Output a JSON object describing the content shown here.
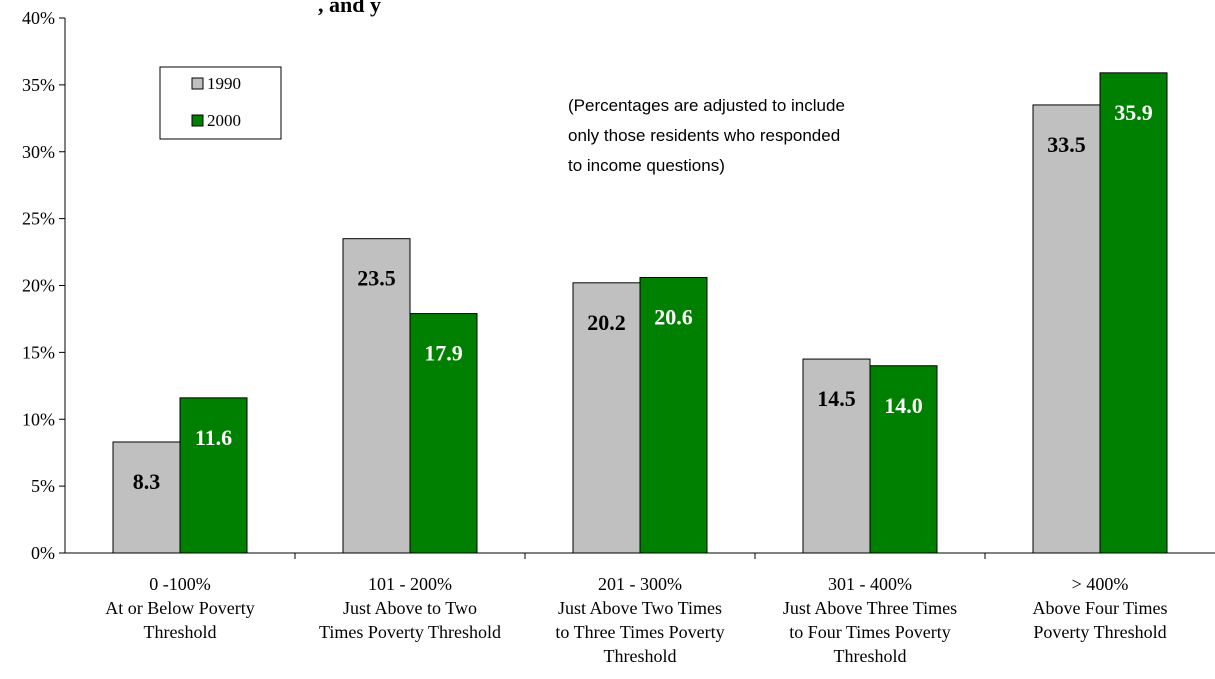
{
  "chart_data": {
    "type": "bar",
    "title": ", and y",
    "categories": [
      [
        "0 -100%",
        "At or Below Poverty",
        "Threshold"
      ],
      [
        "101 - 200%",
        "Just Above to Two",
        "Times Poverty Threshold"
      ],
      [
        "201 - 300%",
        "Just Above Two Times",
        "to Three Times Poverty",
        "Threshold"
      ],
      [
        "301 - 400%",
        "Just Above Three Times",
        "to Four Times Poverty",
        "Threshold"
      ],
      [
        "> 400%",
        "Above Four Times",
        "Poverty Threshold"
      ]
    ],
    "series": [
      {
        "name": "1990",
        "color": "#c0c0c0",
        "label_color": "#000000",
        "values": [
          8.3,
          23.5,
          20.2,
          14.5,
          33.5
        ],
        "labels": [
          "8.3",
          "23.5",
          "20.2",
          "14.5",
          "33.5"
        ]
      },
      {
        "name": "2000",
        "color": "#008000",
        "label_color": "#ffffff",
        "values": [
          11.6,
          17.9,
          20.6,
          14.0,
          35.9
        ],
        "labels": [
          "11.6",
          "17.9",
          "20.6",
          "14.0",
          "35.9"
        ]
      }
    ],
    "ylim": [
      0,
      40
    ],
    "yticks": [
      "0%",
      "5%",
      "10%",
      "15%",
      "20%",
      "25%",
      "30%",
      "35%",
      "40%"
    ],
    "ytick_values": [
      0,
      5,
      10,
      15,
      20,
      25,
      30,
      35,
      40
    ],
    "legend_position": "top-left",
    "annotation": [
      "(Percentages are adjusted to include",
      "only those residents who responded",
      "to income questions)"
    ],
    "grid": false
  }
}
